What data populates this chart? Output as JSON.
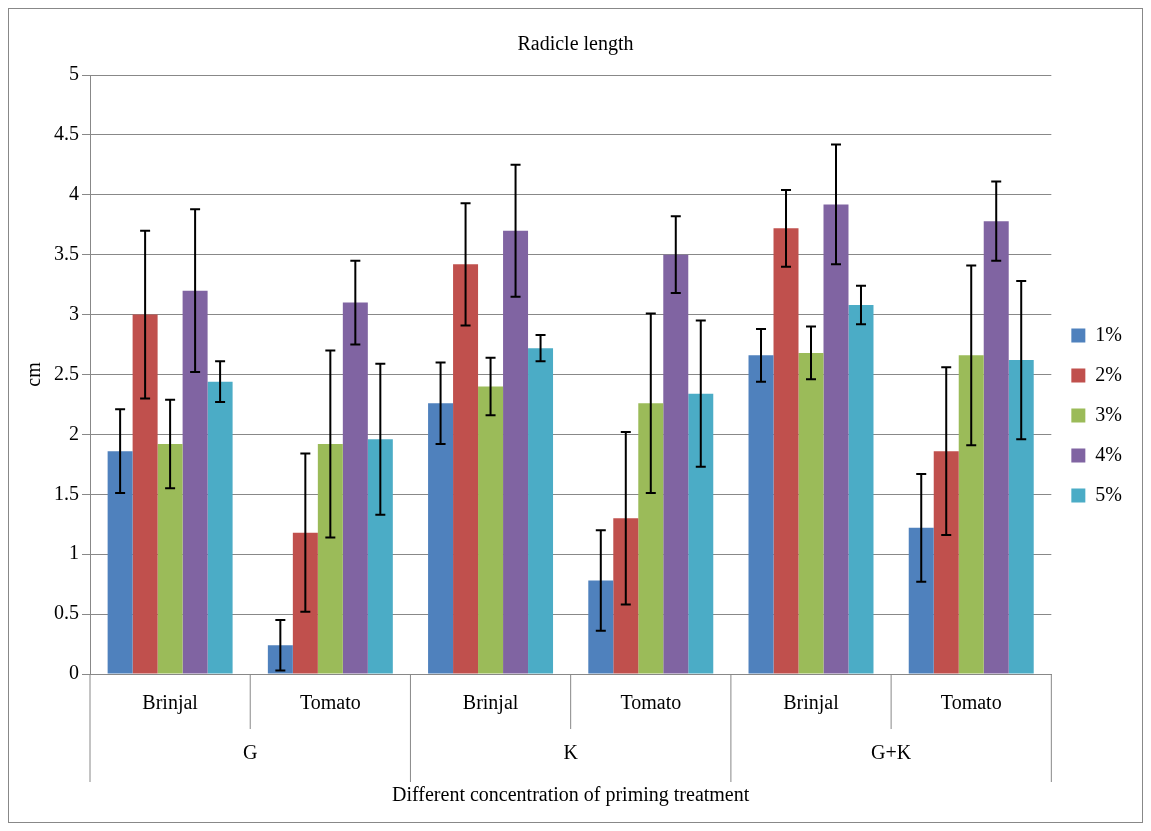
{
  "chart_data": {
    "type": "bar",
    "title": "Radicle length",
    "xlabel": "Different concentration of priming treatment",
    "ylabel": "cm",
    "categories": [
      "Brinjal",
      "Tomato",
      "Brinjal",
      "Tomato",
      "Brinjal",
      "Tomato"
    ],
    "annotations": [
      "G",
      "K",
      "G+K"
    ],
    "series": [
      {
        "name": "1%",
        "color": "#4f81bd",
        "values": [
          1.86,
          0.24,
          2.26,
          0.78,
          2.66,
          1.22
        ],
        "errors": [
          0.35,
          0.21,
          0.34,
          0.42,
          0.22,
          0.45
        ]
      },
      {
        "name": "2%",
        "color": "#c0504d",
        "values": [
          3.0,
          1.18,
          3.42,
          1.3,
          3.72,
          1.86
        ],
        "errors": [
          0.7,
          0.66,
          0.51,
          0.72,
          0.32,
          0.7
        ]
      },
      {
        "name": "3%",
        "color": "#9bbb59",
        "values": [
          1.92,
          1.92,
          2.4,
          2.26,
          2.68,
          2.66
        ],
        "errors": [
          0.37,
          0.78,
          0.24,
          0.75,
          0.22,
          0.75
        ]
      },
      {
        "name": "4%",
        "color": "#8064a2",
        "values": [
          3.2,
          3.1,
          3.7,
          3.5,
          3.92,
          3.78
        ],
        "errors": [
          0.68,
          0.35,
          0.55,
          0.32,
          0.5,
          0.33
        ]
      },
      {
        "name": "5%",
        "color": "#4bacc6",
        "values": [
          2.44,
          1.96,
          2.72,
          2.34,
          3.08,
          2.62
        ],
        "errors": [
          0.17,
          0.63,
          0.11,
          0.61,
          0.16,
          0.66
        ]
      }
    ],
    "ylim": [
      0,
      5
    ],
    "yticks": [
      0,
      0.5,
      1,
      1.5,
      2,
      2.5,
      3,
      3.5,
      4,
      4.5,
      5
    ],
    "grid": "y",
    "legend": "right"
  }
}
